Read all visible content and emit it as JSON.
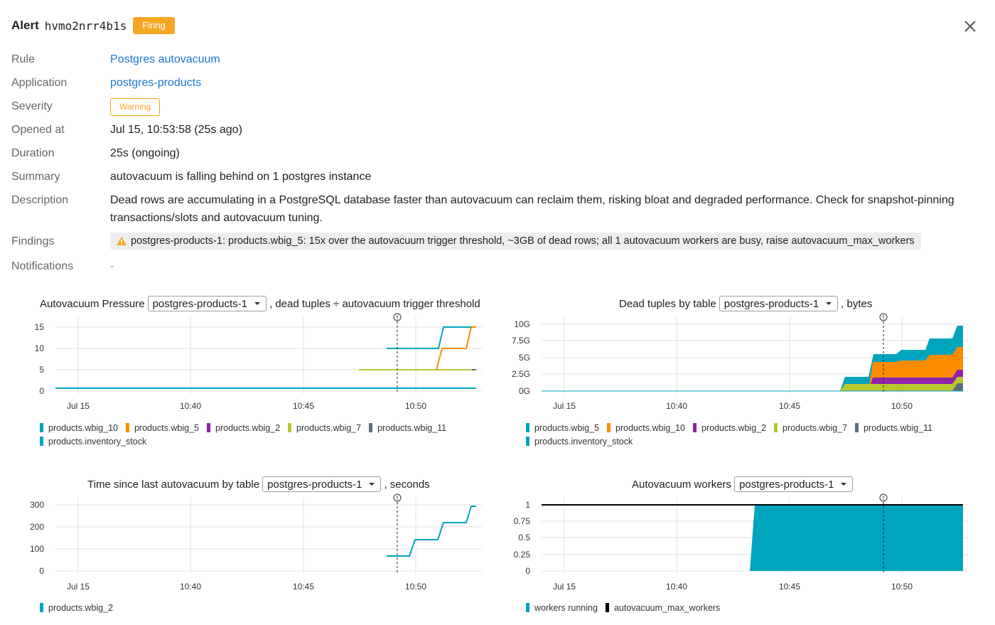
{
  "header": {
    "title_word": "Alert",
    "alert_id": "hvmo2nrr4b1s",
    "status": "Firing"
  },
  "details": {
    "rule": {
      "label": "Rule",
      "value": "Postgres autovacuum"
    },
    "application": {
      "label": "Application",
      "value": "postgres-products"
    },
    "severity": {
      "label": "Severity",
      "value": "Warning"
    },
    "opened_at": {
      "label": "Opened at",
      "value": "Jul 15, 10:53:58 (25s ago)"
    },
    "duration": {
      "label": "Duration",
      "value": "25s (ongoing)"
    },
    "summary": {
      "label": "Summary",
      "value": "autovacuum is falling behind on 1 postgres instance"
    },
    "description": {
      "label": "Description",
      "value": "Dead rows are accumulating in a PostgreSQL database faster than autovacuum can reclaim them, risking bloat and degraded performance. Check for snapshot-pinning transactions/slots and autovacuum tuning."
    },
    "findings": {
      "label": "Findings",
      "value": "postgres-products-1: products.wbig_5: 15x over the autovacuum trigger threshold, ~3GB of dead rows; all 1 autovacuum workers are busy, raise autovacuum_max_workers"
    },
    "notifications": {
      "label": "Notifications",
      "value": "-"
    }
  },
  "colors": {
    "teal": "#00a5bd",
    "orange": "#fb8c00",
    "purple": "#8e24aa",
    "lime": "#b8c72e",
    "slate": "#5c6f7e",
    "black": "#000000",
    "firing": "#f5a623",
    "link": "#1976d2"
  },
  "x_ticks": [
    "Jul 15",
    "10:40",
    "10:45",
    "10:50"
  ],
  "charts": {
    "pressure": {
      "title": "Autovacuum Pressure",
      "select": "postgres-products-1",
      "suffix": ", dead tuples ÷ autovacuum trigger threshold",
      "y_ticks": [
        "15",
        "10",
        "5",
        "0"
      ],
      "legend": [
        {
          "name": "products.wbig_10",
          "color": "teal"
        },
        {
          "name": "products.wbig_5",
          "color": "orange"
        },
        {
          "name": "products.wbig_2",
          "color": "purple"
        },
        {
          "name": "products.wbig_7",
          "color": "lime"
        },
        {
          "name": "products.wbig_11",
          "color": "slate"
        },
        {
          "name": "products.inventory_stock",
          "color": "teal"
        }
      ]
    },
    "dead_tuples": {
      "title": "Dead tuples by table",
      "select": "postgres-products-1",
      "suffix": ", bytes",
      "y_ticks": [
        "10G",
        "7.5G",
        "5G",
        "2.5G",
        "0G"
      ],
      "legend": [
        {
          "name": "products.wbig_5",
          "color": "teal"
        },
        {
          "name": "products.wbig_10",
          "color": "orange"
        },
        {
          "name": "products.wbig_2",
          "color": "purple"
        },
        {
          "name": "products.wbig_7",
          "color": "lime"
        },
        {
          "name": "products.wbig_11",
          "color": "slate"
        },
        {
          "name": "products.inventory_stock",
          "color": "teal"
        }
      ]
    },
    "time_since": {
      "title": "Time since last autovacuum by table",
      "select": "postgres-products-1",
      "suffix": ", seconds",
      "y_ticks": [
        "300",
        "200",
        "100",
        "0"
      ],
      "legend": [
        {
          "name": "products.wbig_2",
          "color": "teal"
        }
      ]
    },
    "workers": {
      "title": "Autovacuum workers",
      "select": "postgres-products-1",
      "suffix": "",
      "y_ticks": [
        "1",
        "0.75",
        "0.5",
        "0.25",
        "0"
      ],
      "legend": [
        {
          "name": "workers running",
          "color": "teal"
        },
        {
          "name": "autovacuum_max_workers",
          "color": "black"
        }
      ]
    }
  }
}
